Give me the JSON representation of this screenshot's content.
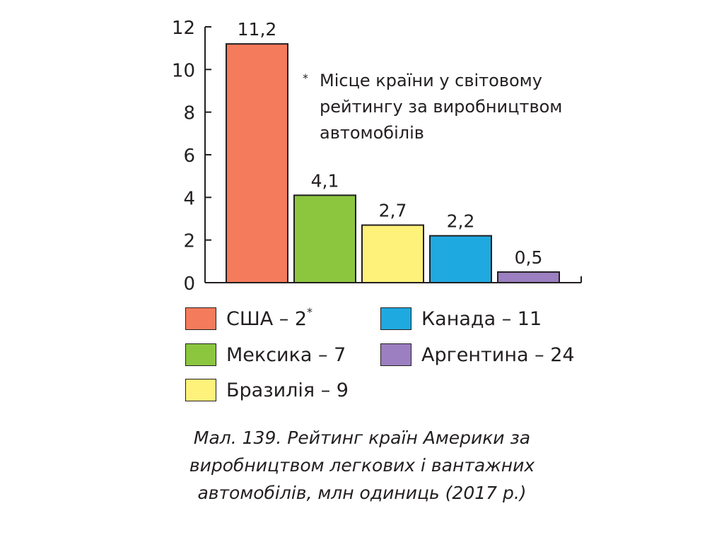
{
  "chart_data": {
    "type": "bar",
    "categories": [
      "США",
      "Мексика",
      "Бразилія",
      "Канада",
      "Аргентина"
    ],
    "values": [
      11.2,
      4.1,
      2.7,
      2.2,
      0.5
    ],
    "value_labels": [
      "11,2",
      "4,1",
      "2,7",
      "2,2",
      "0,5"
    ],
    "ylim": [
      0,
      12
    ],
    "yticks": [
      "0",
      "2",
      "4",
      "6",
      "8",
      "10",
      "12"
    ],
    "colors": [
      "#f47b5b",
      "#8cc63f",
      "#fff27a",
      "#1fa9e1",
      "#9b7fc0"
    ],
    "grid": false,
    "title": ""
  },
  "note": {
    "star": "*",
    "text": "Місце країни у світовому рейтингу за виробництвом автомобілів"
  },
  "legend": [
    {
      "label": "США – 2",
      "sup": "*",
      "color": "#f47b5b"
    },
    {
      "label": "Мексика – 7",
      "sup": "",
      "color": "#8cc63f"
    },
    {
      "label": "Бразилія – 9",
      "sup": "",
      "color": "#fff27a"
    },
    {
      "label": "Канада – 11",
      "sup": "",
      "color": "#1fa9e1"
    },
    {
      "label": "Аргентина – 24",
      "sup": "",
      "color": "#9b7fc0"
    }
  ],
  "caption": {
    "line1": "Мал. 139. Рейтинг країн Америки за",
    "line2": "виробництвом легкових і вантажних",
    "line3": "автомобілів, млн одиниць (2017 р.)"
  }
}
